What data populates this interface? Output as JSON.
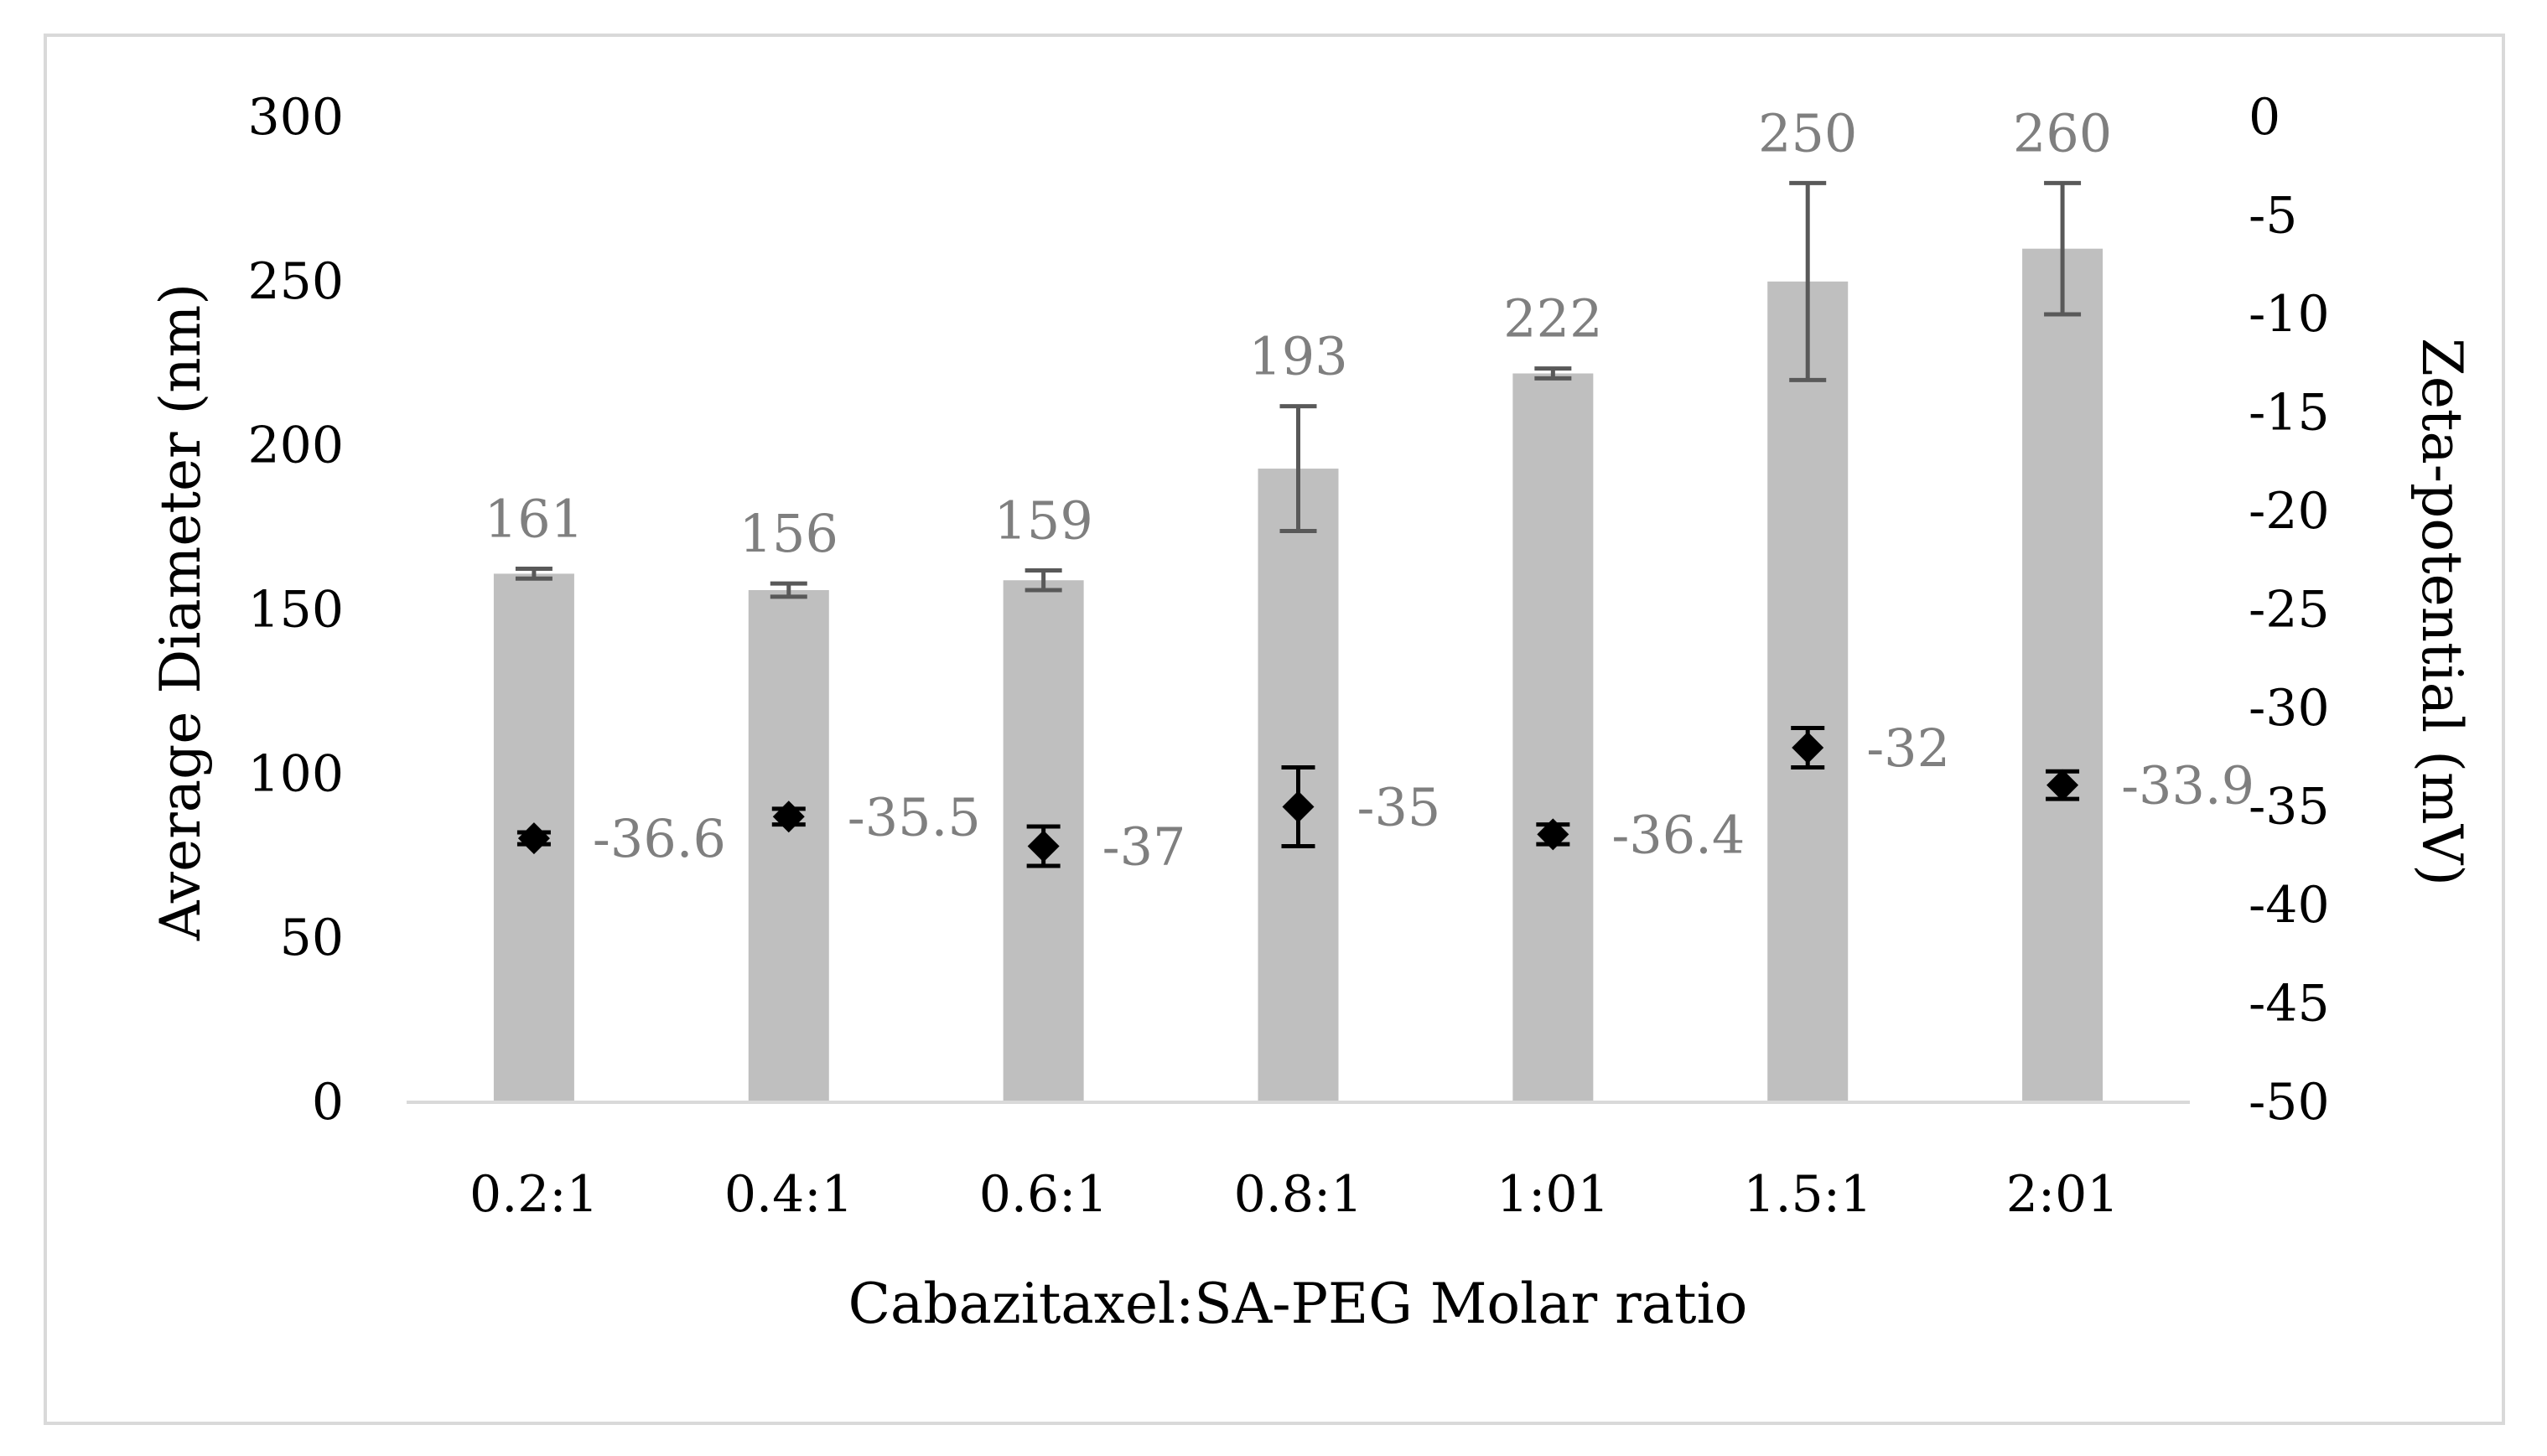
{
  "chart_data": {
    "type": "bar",
    "title": "",
    "xlabel": "Cabazitaxel:SA-PEG Molar ratio",
    "ylabel": "Average Diameter (nm)",
    "y2label": "Zeta-potential (mV)",
    "categories": [
      "0.2:1",
      "0.4:1",
      "0.6:1",
      "0.8:1",
      "1:01",
      "1.5:1",
      "2:01"
    ],
    "ylim": [
      0,
      300
    ],
    "yticks": [
      "0",
      "50",
      "100",
      "150",
      "200",
      "250",
      "300"
    ],
    "y2lim": [
      -50,
      0
    ],
    "y2ticks": [
      "0",
      "-5",
      "-10",
      "-15",
      "-20",
      "-25",
      "-30",
      "-35",
      "-40",
      "-45",
      "-50"
    ],
    "series": [
      {
        "name": "Average Diameter",
        "kind": "bar",
        "axis": "left",
        "values": [
          161,
          156,
          159,
          193,
          222,
          250,
          260
        ],
        "labels": [
          "161",
          "156",
          "159",
          "193",
          "222",
          "250",
          "260"
        ],
        "errors": [
          1.5,
          2,
          3,
          19,
          1.5,
          30,
          20
        ],
        "color": "#bfbfbf"
      },
      {
        "name": "Zeta-potential",
        "kind": "scatter",
        "axis": "right",
        "values": [
          -36.6,
          -35.5,
          -37,
          -35,
          -36.4,
          -32,
          -33.9
        ],
        "labels": [
          "-36.6",
          "-35.5",
          "-37",
          "-35",
          "-36.4",
          "-32",
          "-33.9"
        ],
        "errors": [
          0.3,
          0.4,
          1,
          2,
          0.5,
          1,
          0.7
        ],
        "color": "#000000"
      }
    ],
    "label_color": "#7f7f7f",
    "error_color": "#595959",
    "grid": false,
    "legend": "none"
  }
}
